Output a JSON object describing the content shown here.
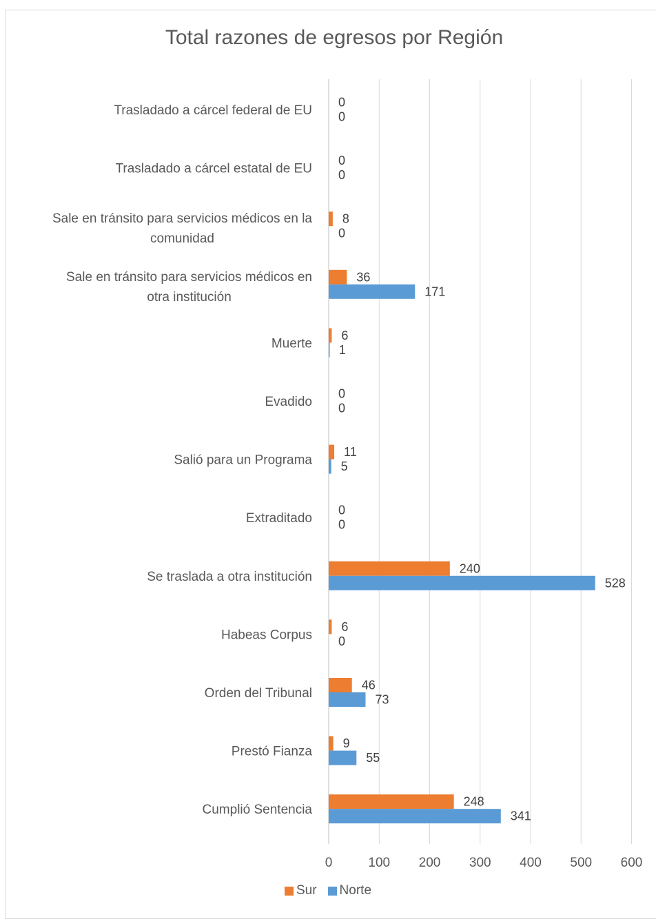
{
  "chart_data": {
    "type": "bar",
    "orientation": "horizontal",
    "title": "Total razones de egresos por Región",
    "xlabel": "",
    "ylabel": "",
    "xlim": [
      0,
      600
    ],
    "x_ticks": [
      0,
      100,
      200,
      300,
      400,
      500,
      600
    ],
    "grid": "vertical",
    "legend_position": "bottom",
    "categories": [
      "Trasladado a cárcel federal de EU",
      "Trasladado a cárcel estatal de EU",
      "Sale en tránsito para servicios médicos en la comunidad",
      "Sale en tránsito para servicios médicos en otra institución",
      "Muerte",
      "Evadido",
      "Salió para un Programa",
      "Extraditado",
      "Se traslada a otra institución",
      "Habeas Corpus",
      "Orden del Tribunal",
      "Prestó Fianza",
      "Cumplió Sentencia"
    ],
    "category_lines": [
      [
        "Trasladado a cárcel federal de EU"
      ],
      [
        "Trasladado a cárcel estatal de EU"
      ],
      [
        "Sale en tránsito para servicios médicos en la",
        "comunidad"
      ],
      [
        "Sale en tránsito para servicios médicos en",
        "otra institución"
      ],
      [
        "Muerte"
      ],
      [
        "Evadido"
      ],
      [
        "Salió para un Programa"
      ],
      [
        "Extraditado"
      ],
      [
        "Se traslada a otra institución"
      ],
      [
        "Habeas Corpus"
      ],
      [
        "Orden del Tribunal"
      ],
      [
        "Prestó Fianza"
      ],
      [
        "Cumplió Sentencia"
      ]
    ],
    "series": [
      {
        "name": "Sur",
        "color": "#ed7d31",
        "values": [
          0,
          0,
          8,
          36,
          6,
          0,
          11,
          0,
          240,
          6,
          46,
          9,
          248
        ]
      },
      {
        "name": "Norte",
        "color": "#5b9bd5",
        "values": [
          0,
          0,
          0,
          171,
          1,
          0,
          5,
          0,
          528,
          0,
          73,
          55,
          341
        ]
      }
    ]
  }
}
